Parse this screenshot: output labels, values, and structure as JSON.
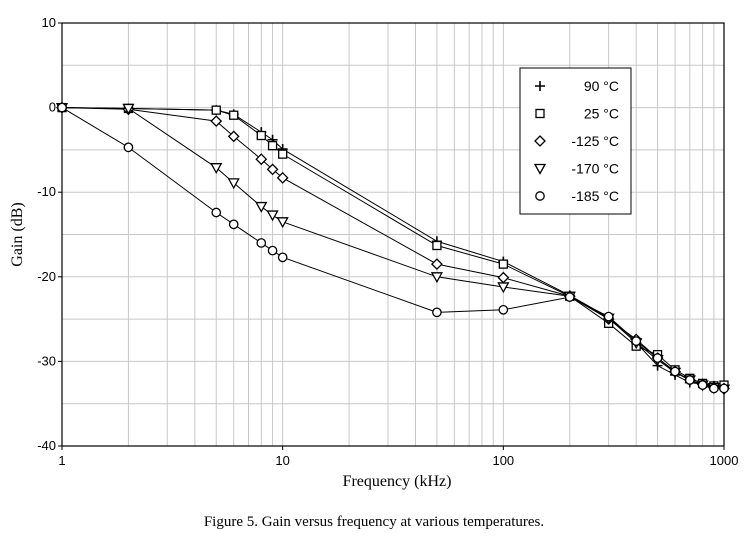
{
  "caption": "Figure 5.  Gain versus frequency at various temperatures.",
  "chart_data": {
    "type": "line",
    "xlabel": "Frequency (kHz)",
    "ylabel": "Gain (dB)",
    "xscale": "log",
    "xlim": [
      1,
      1000
    ],
    "ylim": [
      -40,
      10
    ],
    "xticks": [
      1,
      10,
      100,
      1000
    ],
    "xtick_labels": [
      "1",
      "10",
      "100",
      "1000"
    ],
    "yticks": [
      10,
      0,
      -10,
      -20,
      -30,
      -40
    ],
    "ytick_labels": [
      "10",
      "0",
      "-10",
      "-20",
      "-30",
      "-40"
    ],
    "grid": true,
    "legend_position": "top-right",
    "colors": {
      "line": "#000000",
      "grid": "#c8c8c8",
      "frame": "#000000"
    },
    "series": [
      {
        "name": "90 °C",
        "marker": "plus",
        "x": [
          1,
          2,
          5,
          6,
          8,
          9,
          10,
          50,
          100,
          200,
          300,
          400,
          500,
          600,
          700,
          800,
          900,
          1000
        ],
        "y": [
          0,
          -0.1,
          -0.3,
          -0.8,
          -2.9,
          -3.8,
          -4.9,
          -15.8,
          -18.2,
          -22.2,
          -24.8,
          -27.8,
          -30.5,
          -31.6,
          -32.5,
          -32.7,
          -32.9,
          -33.0
        ]
      },
      {
        "name": "25 °C",
        "marker": "square",
        "x": [
          1,
          2,
          5,
          6,
          8,
          9,
          10,
          50,
          100,
          200,
          300,
          400,
          500,
          600,
          700,
          800,
          900,
          1000
        ],
        "y": [
          0,
          -0.1,
          -0.3,
          -0.9,
          -3.3,
          -4.5,
          -5.5,
          -16.3,
          -18.5,
          -22.3,
          -25.5,
          -28.2,
          -29.2,
          -31.0,
          -32.0,
          -32.6,
          -32.9,
          -32.8
        ]
      },
      {
        "name": "-125 °C",
        "marker": "diamond",
        "x": [
          1,
          2,
          5,
          6,
          8,
          9,
          10,
          50,
          100,
          200,
          300,
          400,
          500,
          600,
          700,
          800,
          900,
          1000
        ],
        "y": [
          0,
          -0.2,
          -1.6,
          -3.4,
          -6.1,
          -7.3,
          -8.3,
          -18.5,
          -20.1,
          -22.3,
          -25.0,
          -27.4,
          -29.6,
          -31.2,
          -32.2,
          -32.7,
          -33.1,
          -33.2
        ]
      },
      {
        "name": "-170 °C",
        "marker": "triangle-down",
        "x": [
          1,
          2,
          5,
          6,
          8,
          9,
          10,
          50,
          100,
          200,
          300,
          400,
          500,
          600,
          700,
          800,
          900,
          1000
        ],
        "y": [
          0,
          -0.1,
          -7.1,
          -8.9,
          -11.7,
          -12.7,
          -13.5,
          -20.0,
          -21.2,
          -22.3,
          -24.9,
          -27.8,
          -29.8,
          -31.3,
          -32.2,
          -32.8,
          -33.1,
          -33.3
        ]
      },
      {
        "name": "-185 °C",
        "marker": "circle",
        "x": [
          1,
          2,
          5,
          6,
          8,
          9,
          10,
          50,
          100,
          200,
          300,
          400,
          500,
          600,
          700,
          800,
          900,
          1000
        ],
        "y": [
          0,
          -4.7,
          -12.4,
          -13.8,
          -16.0,
          -16.9,
          -17.7,
          -24.2,
          -23.9,
          -22.4,
          -24.7,
          -27.6,
          -29.6,
          -31.2,
          -32.2,
          -32.8,
          -33.2,
          -33.2
        ]
      }
    ]
  }
}
